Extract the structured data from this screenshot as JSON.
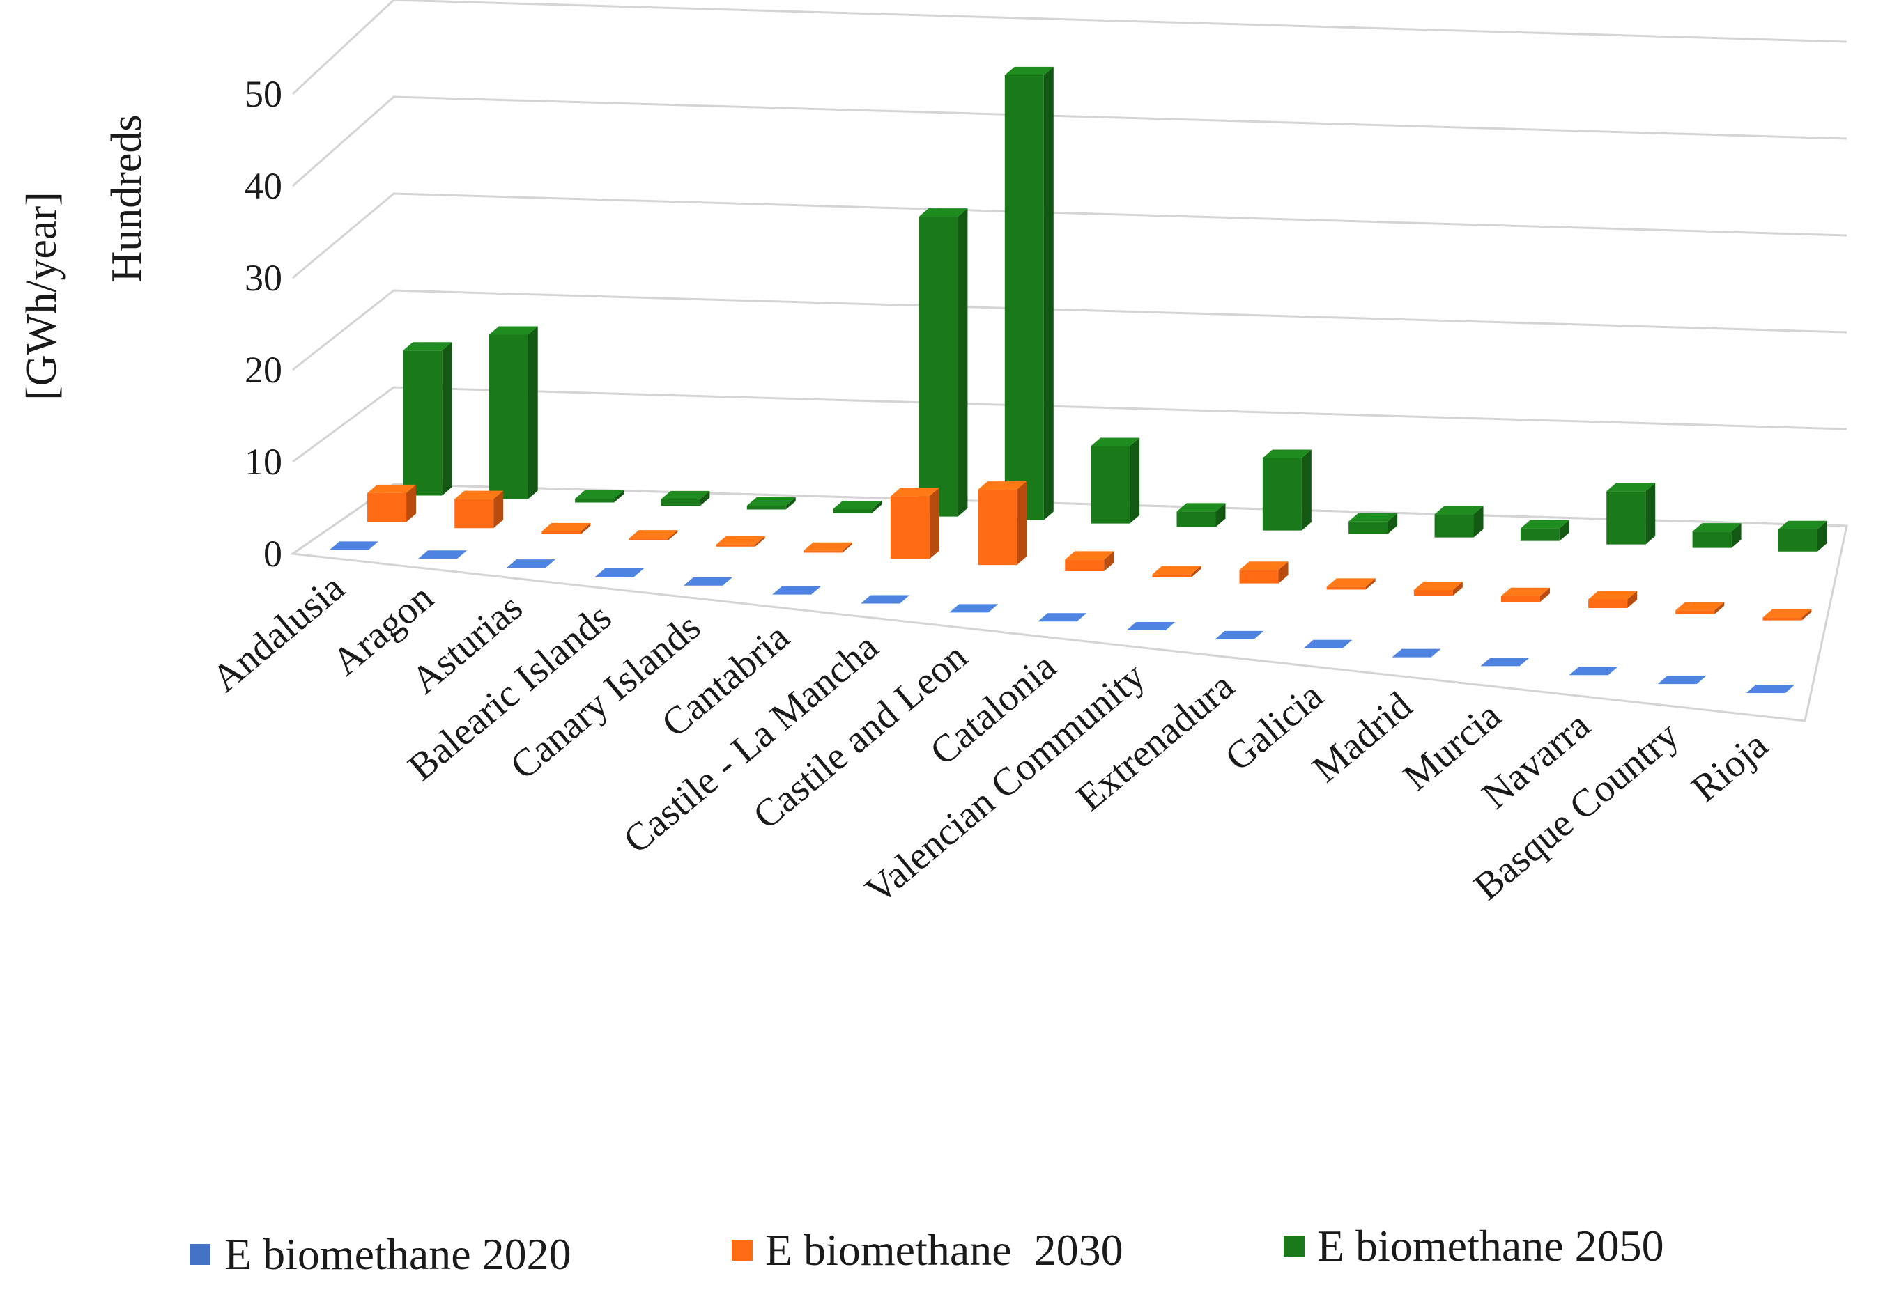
{
  "chart_data": {
    "type": "bar",
    "subtype": "3d-clustered-column",
    "title": "",
    "ylabel": "[GWh/year]",
    "yunit_label": "Hundreds",
    "ylim": [
      0,
      50
    ],
    "yticks": [
      0,
      10,
      20,
      30,
      40,
      50
    ],
    "categories": [
      "Andalusia",
      "Aragon",
      "Asturias",
      "Balearic Islands",
      "Canary Islands",
      "Cantabria",
      "Castile - La Mancha",
      "Castile and Leon",
      "Catalonia",
      "Valencian Community",
      "Extrenadura",
      "Galicia",
      "Madrid",
      "Murcia",
      "Navarra",
      "Basque Country",
      "Rioja"
    ],
    "series": [
      {
        "name": "E biomethane 2020",
        "color": "#4472C4",
        "values": [
          0,
          0,
          0,
          0,
          0,
          0,
          0,
          0,
          0,
          0,
          0,
          0,
          0,
          0,
          0,
          0,
          0
        ]
      },
      {
        "name": "E biomethane  2030",
        "color": "#FF6A13",
        "values": [
          3,
          3,
          0.3,
          0.2,
          0.2,
          0.2,
          6.5,
          7.8,
          1.2,
          0.3,
          1.4,
          0.3,
          0.6,
          0.6,
          0.9,
          0.4,
          0.3
        ]
      },
      {
        "name": "E biomethane 2050",
        "color": "#1A7A1A",
        "values": [
          15,
          17,
          0.4,
          0.7,
          0.4,
          0.4,
          31,
          46,
          8,
          1.6,
          7.5,
          1.3,
          2.4,
          1.3,
          5.5,
          1.7,
          2.3
        ]
      }
    ],
    "legend_position": "bottom",
    "grid": true
  }
}
